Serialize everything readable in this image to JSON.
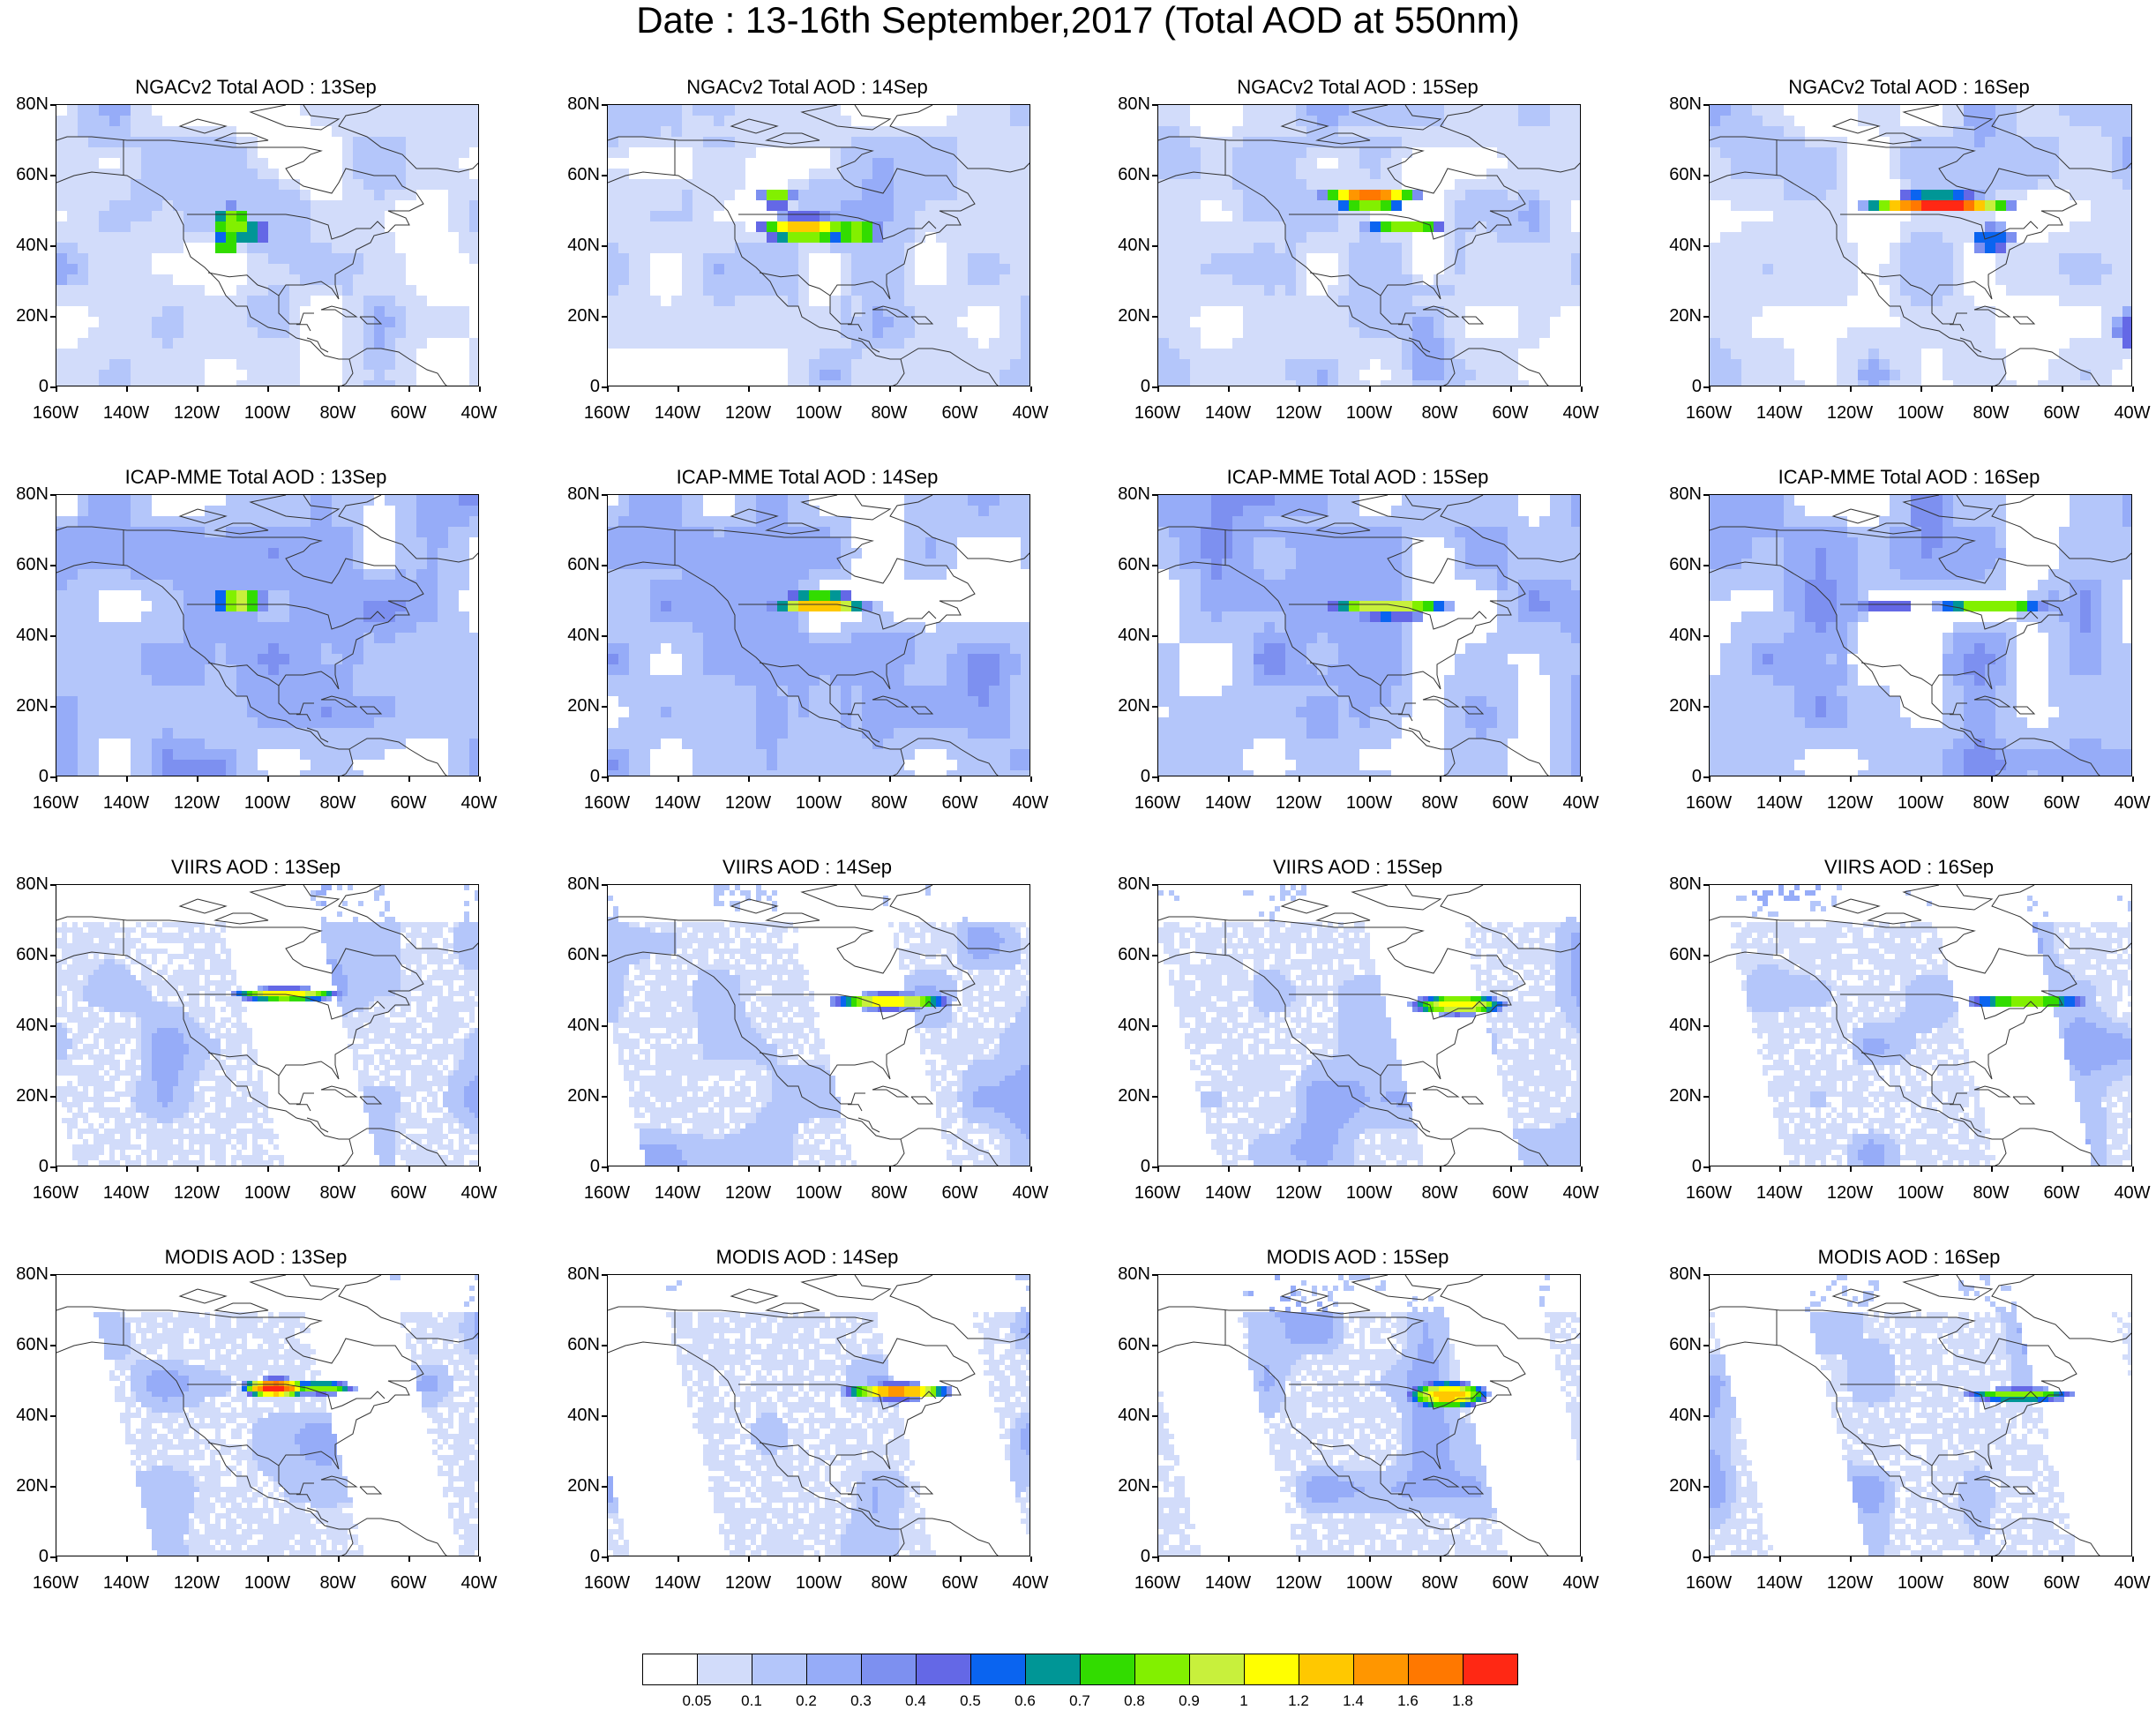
{
  "title": "Date : 13-16th September,2017 (Total AOD at 550nm)",
  "axes": {
    "lat_labels": [
      "80N",
      "60N",
      "40N",
      "20N",
      "0"
    ],
    "lon_labels": [
      "160W",
      "140W",
      "120W",
      "100W",
      "80W",
      "60W",
      "40W"
    ]
  },
  "panels": [
    {
      "title": "NGACv2 Total AOD : 13Sep",
      "style": "model",
      "bg": 1,
      "plume": "n13"
    },
    {
      "title": "NGACv2 Total AOD : 14Sep",
      "style": "model",
      "bg": 1,
      "plume": "n14"
    },
    {
      "title": "NGACv2 Total AOD : 15Sep",
      "style": "model",
      "bg": 1,
      "plume": "n15"
    },
    {
      "title": "NGACv2 Total AOD : 16Sep",
      "style": "model",
      "bg": 1,
      "plume": "n16"
    },
    {
      "title": "ICAP-MME Total AOD : 13Sep",
      "style": "model",
      "bg": 2,
      "plume": "i13"
    },
    {
      "title": "ICAP-MME Total AOD : 14Sep",
      "style": "model",
      "bg": 2,
      "plume": "i14"
    },
    {
      "title": "ICAP-MME Total AOD : 15Sep",
      "style": "model",
      "bg": 2,
      "plume": "i15"
    },
    {
      "title": "ICAP-MME Total AOD : 16Sep",
      "style": "model",
      "bg": 2,
      "plume": "i16"
    },
    {
      "title": "VIIRS AOD : 13Sep",
      "style": "sat",
      "bg": 1,
      "plume": "v13"
    },
    {
      "title": "VIIRS AOD : 14Sep",
      "style": "sat",
      "bg": 1,
      "plume": "v14"
    },
    {
      "title": "VIIRS AOD : 15Sep",
      "style": "sat",
      "bg": 1,
      "plume": "v15"
    },
    {
      "title": "VIIRS AOD : 16Sep",
      "style": "sat",
      "bg": 1,
      "plume": "v16"
    },
    {
      "title": "MODIS AOD : 13Sep",
      "style": "sat",
      "bg": 1,
      "plume": "m13"
    },
    {
      "title": "MODIS AOD : 14Sep",
      "style": "sat",
      "bg": 1,
      "plume": "m14"
    },
    {
      "title": "MODIS AOD : 15Sep",
      "style": "sat",
      "bg": 1,
      "plume": "m15"
    },
    {
      "title": "MODIS AOD : 16Sep",
      "style": "sat",
      "bg": 1,
      "plume": "m16"
    }
  ],
  "colorbar": {
    "labels": [
      "0.05",
      "0.1",
      "0.2",
      "0.3",
      "0.4",
      "0.5",
      "0.6",
      "0.7",
      "0.8",
      "0.9",
      "1",
      "1.2",
      "1.4",
      "1.6",
      "1.8"
    ],
    "colors": [
      "#ffffff",
      "#d2dcfa",
      "#b4c6fa",
      "#96acf8",
      "#7d90f0",
      "#6468e6",
      "#0a64f0",
      "#009696",
      "#32dc00",
      "#82f000",
      "#c8f03c",
      "#ffff00",
      "#ffc800",
      "#ff9600",
      "#ff7800",
      "#ff2814"
    ]
  }
}
